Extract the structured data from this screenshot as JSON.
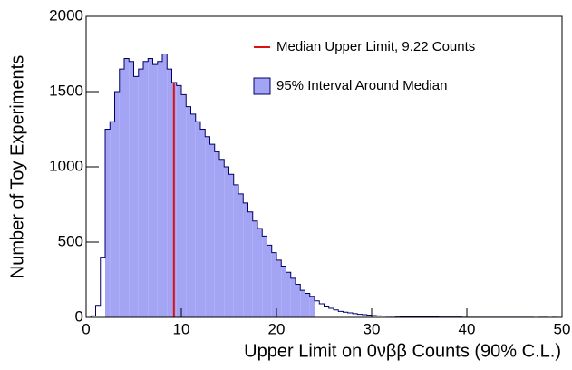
{
  "chart_data": {
    "type": "histogram",
    "xlabel": "Upper Limit on 0νββ Counts (90% C.L.)",
    "ylabel": "Number of Toy Experiments",
    "bins": [
      0,
      0.5,
      1,
      1.5,
      2,
      2.5,
      3,
      3.5,
      4,
      4.5,
      5,
      5.5,
      6,
      6.5,
      7,
      7.5,
      8,
      8.5,
      9,
      9.5,
      10,
      10.5,
      11,
      11.5,
      12,
      12.5,
      13,
      13.5,
      14,
      14.5,
      15,
      15.5,
      16,
      16.5,
      17,
      17.5,
      18,
      18.5,
      19,
      19.5,
      20,
      20.5,
      21,
      21.5,
      22,
      22.5,
      23,
      23.5,
      24,
      24.5,
      25,
      25.5,
      26,
      26.5,
      27,
      27.5,
      28,
      28.5,
      29,
      29.5,
      30,
      30.5,
      31,
      31.5,
      32,
      32.5,
      33,
      33.5,
      34,
      34.5,
      35,
      35.5,
      36,
      36.5,
      37,
      37.5,
      38,
      38.5,
      39,
      39.5,
      40,
      40.5,
      41,
      41.5,
      42,
      42.5,
      43,
      43.5,
      44,
      44.5,
      45,
      45.5,
      46,
      46.5,
      47,
      47.5,
      48,
      48.5,
      49,
      49.5,
      50
    ],
    "values": [
      0,
      10,
      80,
      400,
      1250,
      1300,
      1500,
      1650,
      1720,
      1700,
      1600,
      1650,
      1700,
      1720,
      1680,
      1700,
      1750,
      1650,
      1560,
      1540,
      1480,
      1400,
      1350,
      1300,
      1250,
      1200,
      1150,
      1100,
      1050,
      1000,
      950,
      880,
      820,
      760,
      700,
      640,
      590,
      540,
      480,
      430,
      380,
      340,
      300,
      260,
      220,
      180,
      160,
      140,
      110,
      90,
      75,
      60,
      50,
      40,
      35,
      30,
      25,
      20,
      18,
      15,
      12,
      10,
      9,
      8,
      8,
      7,
      6,
      5,
      5,
      4,
      4,
      3,
      3,
      3,
      2,
      2,
      2,
      2,
      2,
      1,
      1,
      1,
      1,
      1,
      1,
      1,
      1,
      1,
      1,
      1,
      1,
      1,
      1,
      1,
      0,
      1,
      1,
      0,
      1,
      0
    ],
    "color": "#000066",
    "interval": {
      "name": "95% Interval Around Median",
      "range": [
        2,
        24
      ],
      "color": "#a4a4f4"
    },
    "median": {
      "name": "Median Upper Limit, 9.22 Counts",
      "value": 9.22,
      "color": "#e01010"
    },
    "xlim": [
      0,
      50
    ],
    "xticks": [
      0,
      10,
      20,
      30,
      40,
      50
    ],
    "ylim": [
      0,
      2000
    ],
    "yticks": [
      0,
      500,
      1000,
      1500,
      2000
    ]
  }
}
